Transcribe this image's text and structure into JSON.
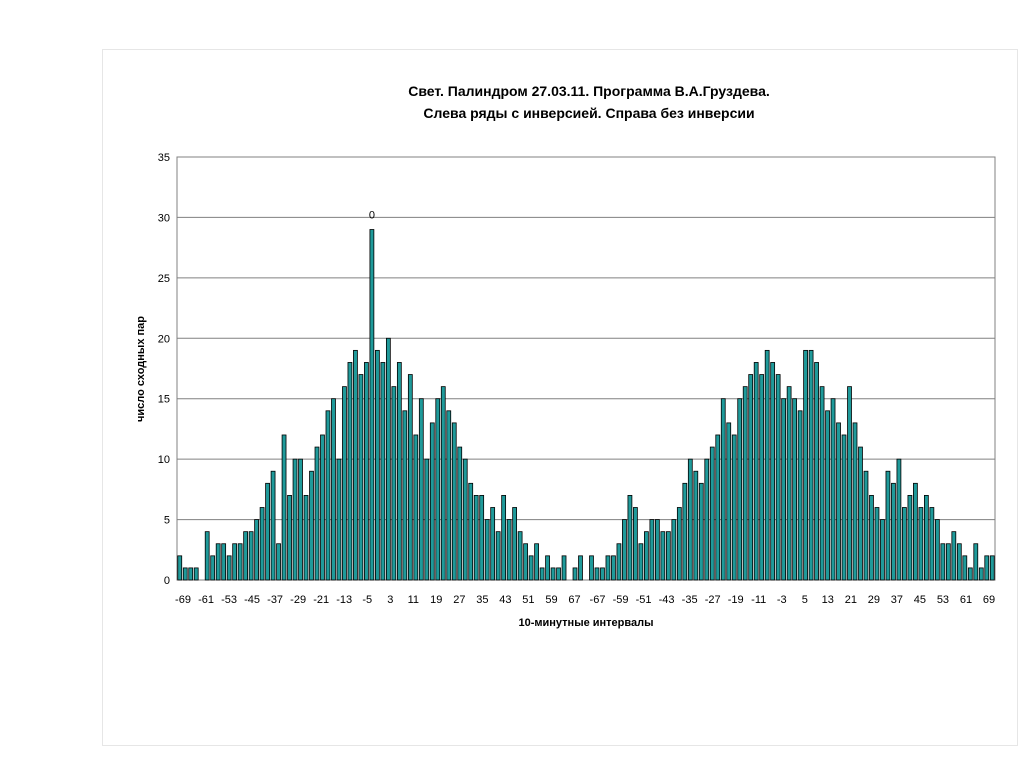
{
  "chart_data": {
    "type": "bar",
    "title_line1": "Свет. Палиндром 27.03.11. Программа В.А.Груздева.",
    "title_line2": "Слева ряды с инверсией. Справа без инверсии",
    "xlabel": "10-минутные интервалы",
    "ylabel": "число сходных пар",
    "ylim": [
      0,
      35
    ],
    "yticks": [
      "0",
      "5",
      "10",
      "15",
      "20",
      "25",
      "30",
      "35"
    ],
    "xticks": [
      "-69",
      "-61",
      "-53",
      "-45",
      "-37",
      "-29",
      "-21",
      "-13",
      "-5",
      "3",
      "11",
      "19",
      "27",
      "35",
      "43",
      "51",
      "59",
      "67",
      "-67",
      "-59",
      "-51",
      "-43",
      "-35",
      "-27",
      "-19",
      "-11",
      "-3",
      "5",
      "13",
      "21",
      "29",
      "37",
      "45",
      "53",
      "61",
      "69"
    ],
    "grid": true,
    "annotations": [
      {
        "text": "0"
      }
    ],
    "series": [
      {
        "segment": "left",
        "x_start": -69,
        "values": [
          2,
          1,
          1,
          1,
          0,
          4,
          2,
          3,
          3,
          2,
          3,
          3,
          4,
          4,
          5,
          6,
          8,
          9,
          3,
          12,
          7,
          10,
          10,
          7,
          9,
          11,
          12,
          14,
          15,
          10,
          16,
          18,
          19,
          17,
          18,
          29,
          19,
          18,
          20,
          16,
          18,
          14,
          17,
          12,
          15,
          10,
          13,
          15,
          16,
          14,
          13,
          11,
          10,
          8,
          7,
          7,
          5,
          6,
          4,
          7,
          5,
          6,
          4,
          3,
          2,
          3,
          1,
          2,
          1,
          1,
          2,
          0
        ]
      },
      {
        "segment": "right",
        "x_start": -69,
        "values": [
          1,
          2,
          0,
          2,
          1,
          1,
          2,
          2,
          3,
          5,
          7,
          6,
          3,
          4,
          5,
          5,
          4,
          4,
          5,
          6,
          8,
          10,
          9,
          8,
          10,
          11,
          12,
          15,
          13,
          12,
          15,
          16,
          17,
          18,
          17,
          19,
          18,
          17,
          15,
          16,
          15,
          14,
          19,
          19,
          18,
          16,
          14,
          15,
          13,
          12,
          16,
          13,
          11,
          9,
          7,
          6,
          5,
          9,
          8,
          10,
          6,
          7,
          8,
          6,
          7,
          6,
          5,
          3,
          3,
          4,
          3,
          2,
          1,
          3,
          1,
          2,
          2
        ]
      }
    ]
  }
}
